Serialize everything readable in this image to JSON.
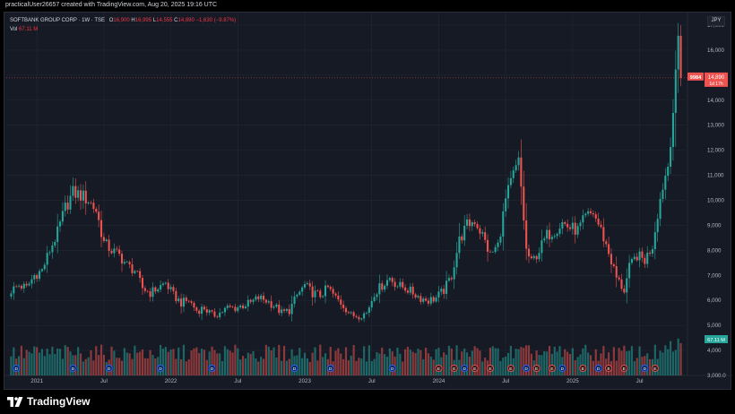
{
  "header": {
    "created_by": "practicalUser26657 created with TradingView.com, Aug 20, 2025 19:16 UTC"
  },
  "legend": {
    "symbol": "SOFTBANK GROUP CORP · 1W · TSE",
    "open_label": "O",
    "open": "16,900",
    "high_label": "H",
    "high": "16,995",
    "low_label": "L",
    "low": "14,555",
    "close_label": "C",
    "close": "14,890",
    "change": "−1,630 (−9.87%)",
    "vol_label": "Vol",
    "vol": "67.11 M"
  },
  "currency": "JPY",
  "price_tags": {
    "ticker": "9984",
    "last_price": "14,890",
    "countdown": "1d 17h",
    "volume": "67.11 M"
  },
  "brand": {
    "name": "TradingView"
  },
  "colors": {
    "up": "#26a69a",
    "down": "#ef5350",
    "background": "#161a25",
    "grid": "#232733",
    "axis_text": "#b2b5be",
    "event_blue": "#2962ff"
  },
  "chart_data": {
    "type": "candlestick",
    "interval": "1W",
    "ylim": [
      3000,
      17500
    ],
    "y_ticks": [
      3000,
      4000,
      5000,
      6000,
      7000,
      8000,
      9000,
      10000,
      11000,
      12000,
      13000,
      14000,
      15000,
      16000,
      17000
    ],
    "y_tick_labels": [
      "3,000.0",
      "4,000",
      "5,000",
      "6,000",
      "7,000",
      "8,000",
      "9,000",
      "10,000",
      "11,000",
      "12,000",
      "13,000",
      "14,000",
      "15,000",
      "16,000",
      "17,000"
    ],
    "x_tick_labels": [
      {
        "week": 10,
        "label": "2021"
      },
      {
        "week": 36,
        "label": "Jul"
      },
      {
        "week": 62,
        "label": "2022"
      },
      {
        "week": 88,
        "label": "Jul"
      },
      {
        "week": 114,
        "label": "2023"
      },
      {
        "week": 140,
        "label": "Jul"
      },
      {
        "week": 166,
        "label": "2024"
      },
      {
        "week": 192,
        "label": "Jul"
      },
      {
        "week": 218,
        "label": "2025"
      },
      {
        "week": 244,
        "label": "Jul"
      }
    ],
    "grid": true,
    "anchors": [
      [
        0,
        6400
      ],
      [
        3,
        6600
      ],
      [
        6,
        6500
      ],
      [
        9,
        7000
      ],
      [
        12,
        7200
      ],
      [
        15,
        8000
      ],
      [
        18,
        8700
      ],
      [
        21,
        9700
      ],
      [
        24,
        10300
      ],
      [
        27,
        10200
      ],
      [
        30,
        10000
      ],
      [
        33,
        9600
      ],
      [
        36,
        8300
      ],
      [
        39,
        8000
      ],
      [
        42,
        7800
      ],
      [
        45,
        7400
      ],
      [
        48,
        7200
      ],
      [
        51,
        6500
      ],
      [
        54,
        6300
      ],
      [
        57,
        6500
      ],
      [
        60,
        6700
      ],
      [
        63,
        6200
      ],
      [
        66,
        5900
      ],
      [
        69,
        6000
      ],
      [
        72,
        5600
      ],
      [
        75,
        5700
      ],
      [
        78,
        5400
      ],
      [
        81,
        5500
      ],
      [
        84,
        5700
      ],
      [
        87,
        5700
      ],
      [
        90,
        5800
      ],
      [
        93,
        5900
      ],
      [
        96,
        6100
      ],
      [
        99,
        6000
      ],
      [
        102,
        5800
      ],
      [
        105,
        5500
      ],
      [
        108,
        5600
      ],
      [
        111,
        6200
      ],
      [
        114,
        6600
      ],
      [
        117,
        6300
      ],
      [
        120,
        6200
      ],
      [
        123,
        6500
      ],
      [
        126,
        6100
      ],
      [
        129,
        5800
      ],
      [
        132,
        5400
      ],
      [
        135,
        5400
      ],
      [
        138,
        5500
      ],
      [
        141,
        6300
      ],
      [
        144,
        6600
      ],
      [
        147,
        6900
      ],
      [
        150,
        6600
      ],
      [
        153,
        6500
      ],
      [
        156,
        6300
      ],
      [
        159,
        6100
      ],
      [
        162,
        6000
      ],
      [
        165,
        6100
      ],
      [
        168,
        6400
      ],
      [
        171,
        7000
      ],
      [
        174,
        8400
      ],
      [
        177,
        9000
      ],
      [
        180,
        9200
      ],
      [
        183,
        8600
      ],
      [
        186,
        7800
      ],
      [
        189,
        8200
      ],
      [
        192,
        10000
      ],
      [
        195,
        11000
      ],
      [
        197,
        11500
      ],
      [
        198,
        10500
      ],
      [
        200,
        8000
      ],
      [
        202,
        7500
      ],
      [
        205,
        8000
      ],
      [
        208,
        8600
      ],
      [
        211,
        8800
      ],
      [
        214,
        9100
      ],
      [
        217,
        8900
      ],
      [
        220,
        8800
      ],
      [
        223,
        9300
      ],
      [
        226,
        9500
      ],
      [
        229,
        8800
      ],
      [
        232,
        7900
      ],
      [
        235,
        6900
      ],
      [
        238,
        6400
      ],
      [
        240,
        7300
      ],
      [
        243,
        7800
      ],
      [
        246,
        7600
      ],
      [
        249,
        8200
      ],
      [
        251,
        9500
      ],
      [
        253,
        10600
      ],
      [
        255,
        11400
      ],
      [
        256,
        12500
      ],
      [
        257,
        13600
      ],
      [
        258,
        14800
      ],
      [
        259,
        16500
      ],
      [
        260,
        14890
      ]
    ],
    "volume_range_millions": [
      0,
      80
    ],
    "last_volume_millions": 67.11,
    "price_line": 14890,
    "event_markers": [
      {
        "week": 2,
        "type": "D"
      },
      {
        "week": 24,
        "type": "D"
      },
      {
        "week": 38,
        "type": "D"
      },
      {
        "week": 58,
        "type": "D"
      },
      {
        "week": 78,
        "type": "D"
      },
      {
        "week": 110,
        "type": "D"
      },
      {
        "week": 124,
        "type": "D"
      },
      {
        "week": 148,
        "type": "D"
      },
      {
        "week": 166,
        "type": "E"
      },
      {
        "week": 172,
        "type": "E"
      },
      {
        "week": 176,
        "type": "D"
      },
      {
        "week": 180,
        "type": "E"
      },
      {
        "week": 186,
        "type": "E"
      },
      {
        "week": 194,
        "type": "E"
      },
      {
        "week": 200,
        "type": "D"
      },
      {
        "week": 204,
        "type": "E"
      },
      {
        "week": 210,
        "type": "E"
      },
      {
        "week": 214,
        "type": "D"
      },
      {
        "week": 222,
        "type": "E"
      },
      {
        "week": 228,
        "type": "D"
      },
      {
        "week": 232,
        "type": "E"
      },
      {
        "week": 238,
        "type": "E"
      },
      {
        "week": 246,
        "type": "D"
      },
      {
        "week": 250,
        "type": "E"
      }
    ]
  }
}
